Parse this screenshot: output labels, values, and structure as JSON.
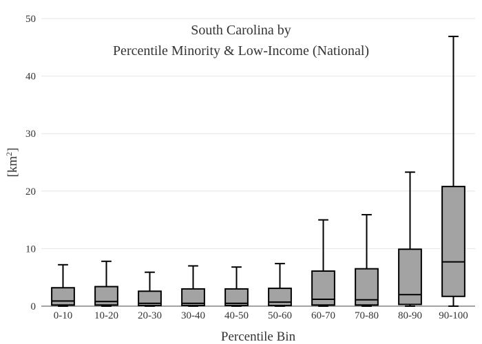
{
  "chart_data": {
    "type": "box",
    "title_lines": [
      "South Carolina  by",
      "Percentile Minority & Low-Income (National)"
    ],
    "xlabel": "Percentile Bin",
    "ylabel_base": "[km",
    "ylabel_sup": "2",
    "ylabel_end": "]",
    "ylim": [
      0,
      50
    ],
    "yticks": [
      0,
      10,
      20,
      30,
      40,
      50
    ],
    "grid": true,
    "legend": false,
    "colors": {
      "box_fill": "#a3a3a3",
      "line": "#000000",
      "grid": "#e6e6e6"
    },
    "categories": [
      "0-10",
      "10-20",
      "20-30",
      "30-40",
      "40-50",
      "50-60",
      "60-70",
      "70-80",
      "80-90",
      "90-100"
    ],
    "boxes": [
      {
        "category": "0-10",
        "min": 0,
        "q1": 0.2,
        "median": 0.9,
        "q3": 3.2,
        "max": 7.2
      },
      {
        "category": "10-20",
        "min": 0,
        "q1": 0.2,
        "median": 0.8,
        "q3": 3.4,
        "max": 7.8
      },
      {
        "category": "20-30",
        "min": 0,
        "q1": 0.1,
        "median": 0.5,
        "q3": 2.6,
        "max": 5.9
      },
      {
        "category": "30-40",
        "min": 0,
        "q1": 0.1,
        "median": 0.5,
        "q3": 3.0,
        "max": 7.0
      },
      {
        "category": "40-50",
        "min": 0,
        "q1": 0.1,
        "median": 0.5,
        "q3": 3.0,
        "max": 6.8
      },
      {
        "category": "50-60",
        "min": 0,
        "q1": 0.1,
        "median": 0.7,
        "q3": 3.1,
        "max": 7.4
      },
      {
        "category": "60-70",
        "min": 0,
        "q1": 0.2,
        "median": 1.2,
        "q3": 6.1,
        "max": 15.0
      },
      {
        "category": "70-80",
        "min": 0,
        "q1": 0.2,
        "median": 1.1,
        "q3": 6.5,
        "max": 15.9
      },
      {
        "category": "80-90",
        "min": 0,
        "q1": 0.3,
        "median": 2.0,
        "q3": 9.9,
        "max": 23.3
      },
      {
        "category": "90-100",
        "min": 0,
        "q1": 1.7,
        "median": 7.7,
        "q3": 20.8,
        "max": 46.9
      }
    ]
  }
}
